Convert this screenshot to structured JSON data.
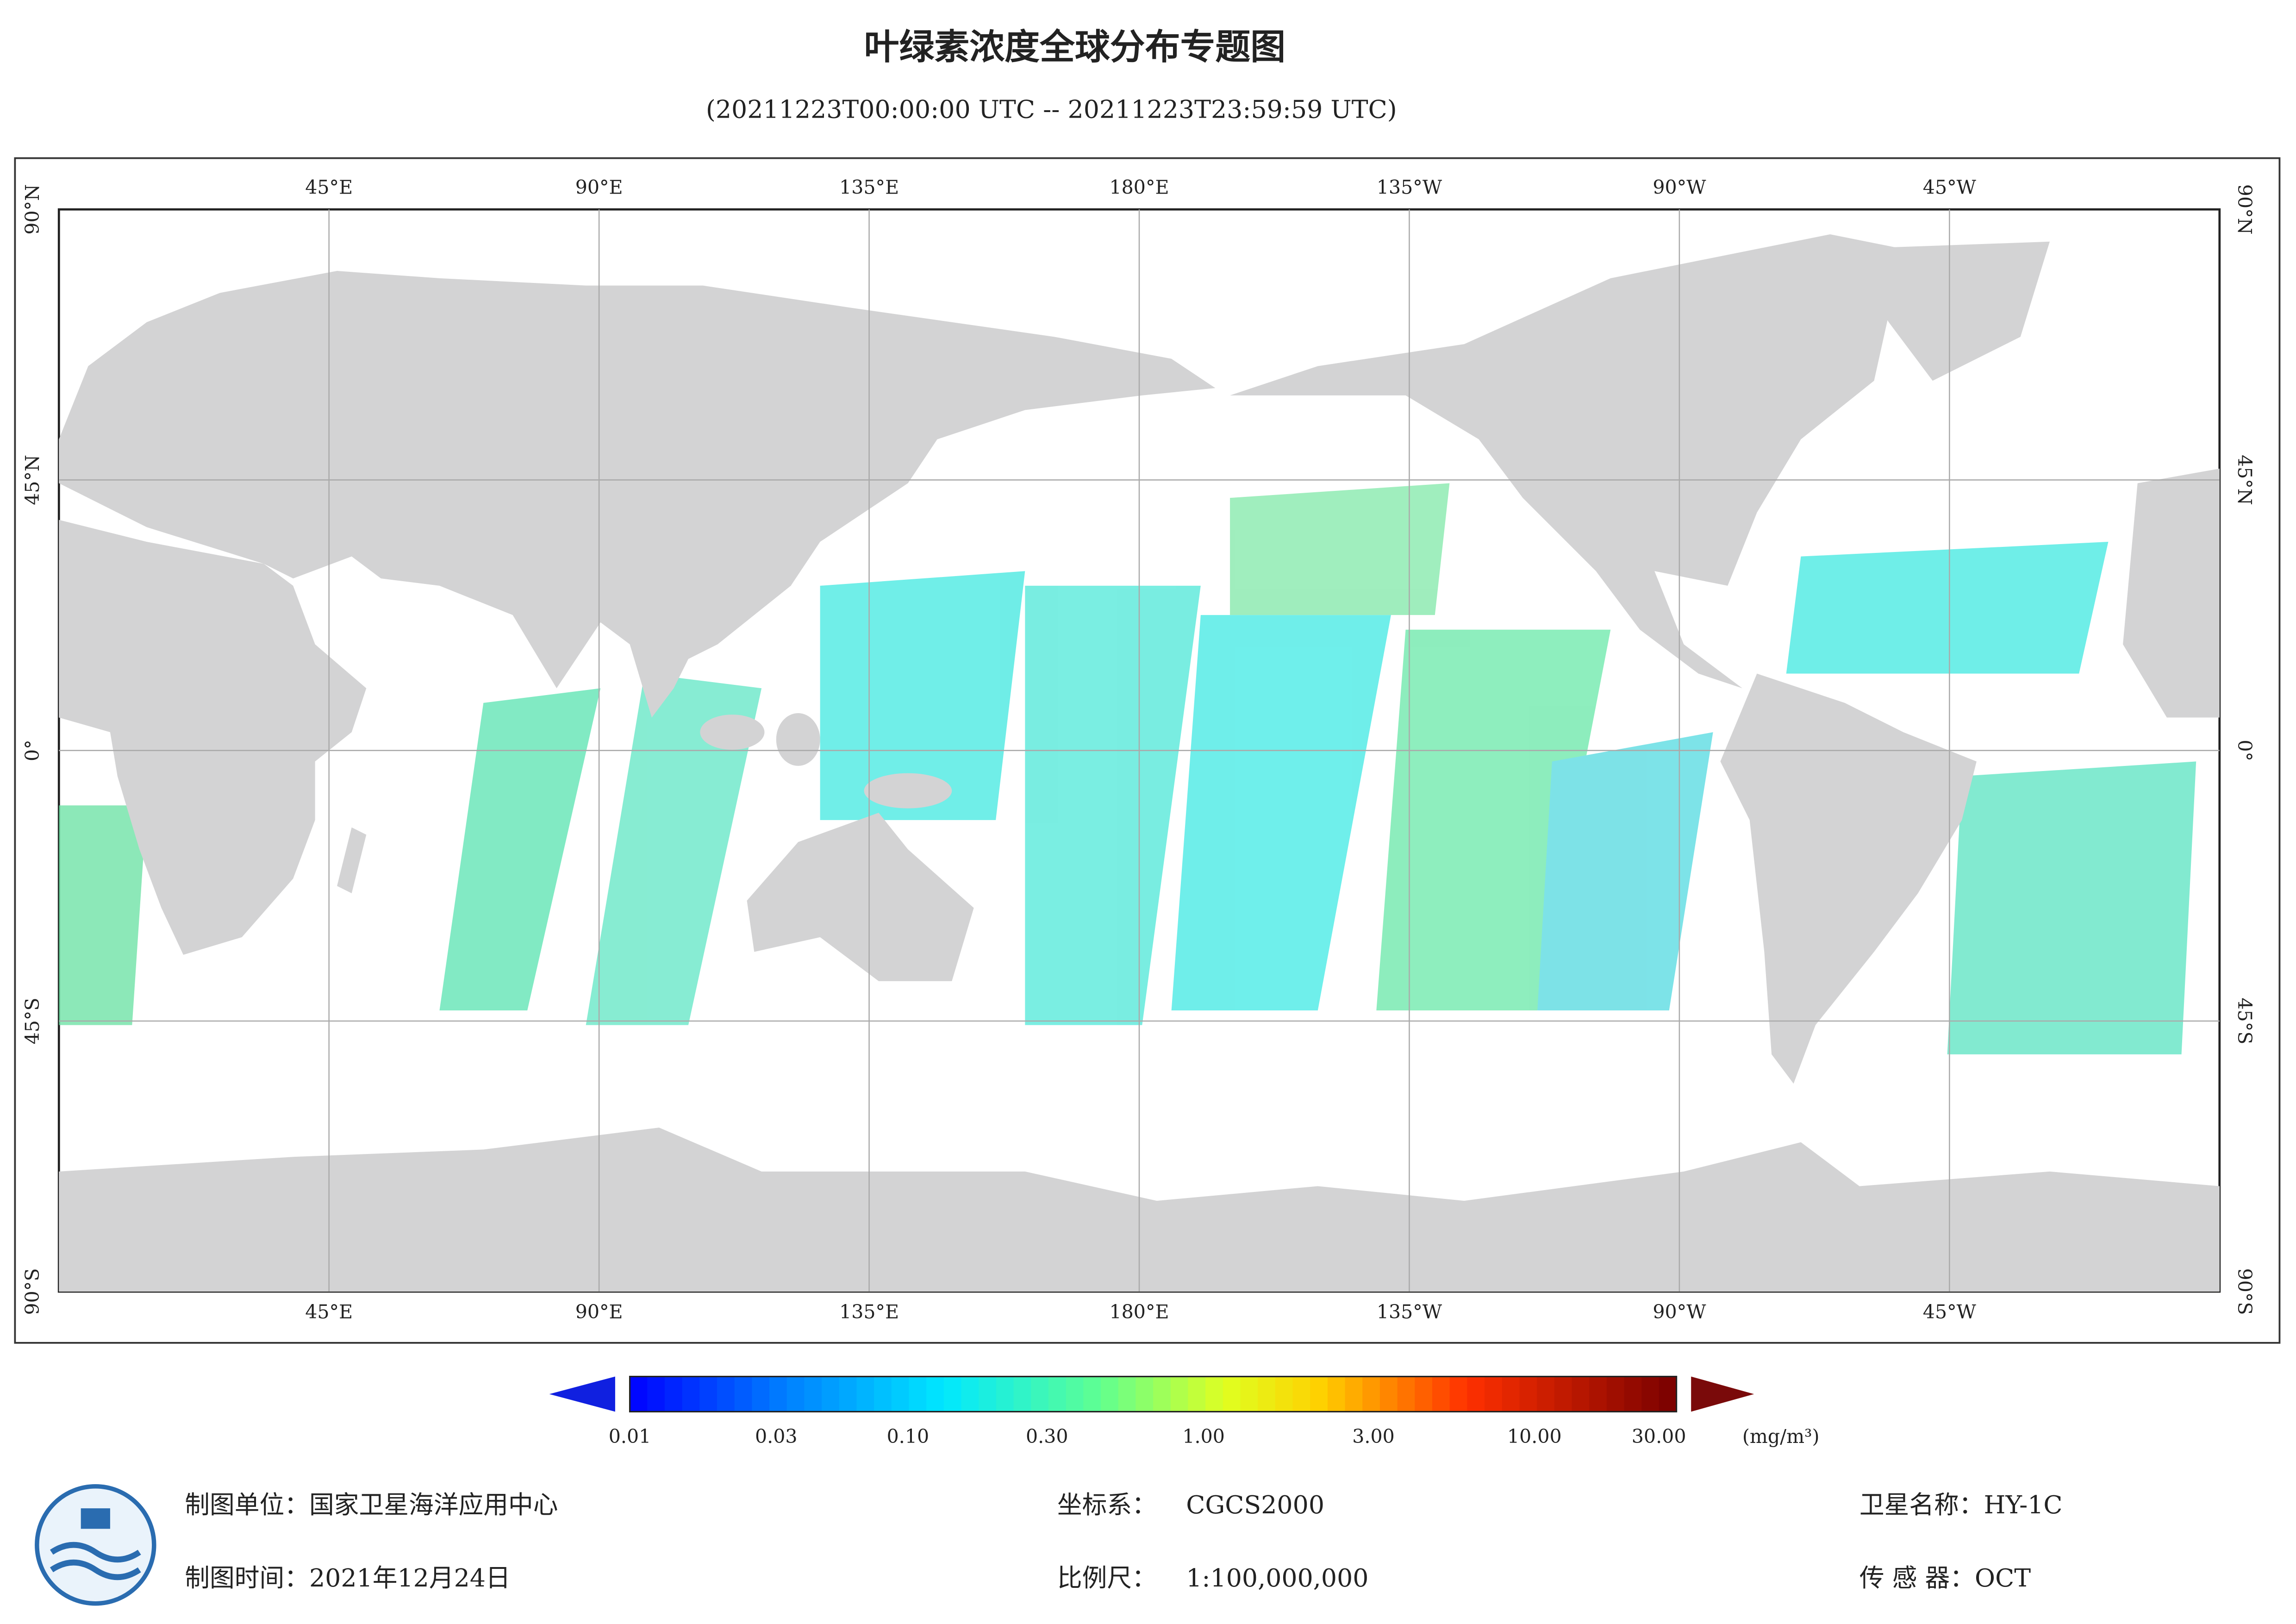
{
  "title": "叶绿素浓度全球分布专题图",
  "subtitle": "(20211223T00:00:00 UTC -- 20211223T23:59:59 UTC)",
  "map": {
    "longitude_labels": [
      "45°E",
      "90°E",
      "135°E",
      "180°E",
      "135°W",
      "90°W",
      "45°W"
    ],
    "latitude_labels": [
      "90°N",
      "45°N",
      "0°",
      "45°S",
      "90°S"
    ]
  },
  "colorbar": {
    "labels": [
      "0.01",
      "0.03",
      "0.10",
      "0.30",
      "1.00",
      "3.00",
      "10.00",
      "30.00"
    ],
    "unit": "(mg/m³)"
  },
  "footer": {
    "unit": "制图单位：国家卫星海洋应用中心",
    "date": "制图时间：2021年12月24日",
    "crs_label": "坐标系：",
    "crs": "CGCS2000",
    "scale_label": "比例尺：",
    "scale": "1:100,000,000",
    "satellite": "卫星名称：HY-1C",
    "sensor": "传 感 器：OCT"
  }
}
